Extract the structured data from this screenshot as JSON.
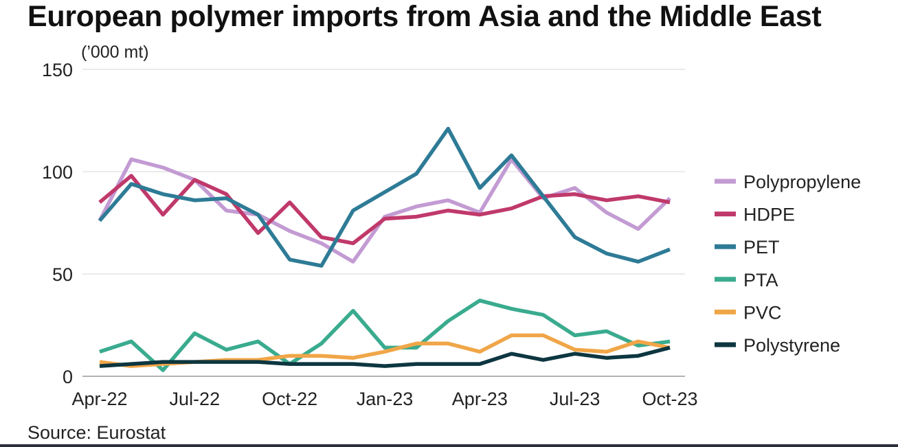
{
  "title": "European polymer imports from Asia and the Middle East",
  "source": "Source: Eurostat",
  "chart_data": {
    "type": "line",
    "title": "European polymer imports from Asia and the Middle East",
    "ylabel": "(’000 mt)",
    "xlabel": "",
    "ylim": [
      0,
      150
    ],
    "yticks": [
      "0",
      "50",
      "100",
      "150"
    ],
    "ytick_values": [
      0,
      50,
      100,
      150
    ],
    "grid": "horizontal",
    "legend_position": "right",
    "x": [
      "Apr-22",
      "May-22",
      "Jun-22",
      "Jul-22",
      "Aug-22",
      "Sep-22",
      "Oct-22",
      "Nov-22",
      "Dec-22",
      "Jan-23",
      "Feb-23",
      "Mar-23",
      "Apr-23",
      "May-23",
      "Jun-23",
      "Jul-23",
      "Aug-23",
      "Sep-23",
      "Oct-23"
    ],
    "xtick_labels": [
      "Apr-22",
      "Jul-22",
      "Oct-22",
      "Jan-23",
      "Apr-23",
      "Jul-23",
      "Oct-23"
    ],
    "xtick_indices": [
      0,
      3,
      6,
      9,
      12,
      15,
      18
    ],
    "series": [
      {
        "name": "Polypropylene",
        "color": "#c39bd3",
        "values": [
          76,
          106,
          102,
          96,
          81,
          79,
          71,
          65,
          56,
          78,
          83,
          86,
          80,
          106,
          87,
          92,
          80,
          72,
          87
        ]
      },
      {
        "name": "HDPE",
        "color": "#c0396b",
        "values": [
          85,
          98,
          79,
          96,
          89,
          70,
          85,
          68,
          65,
          77,
          78,
          81,
          79,
          82,
          88,
          89,
          86,
          88,
          85
        ]
      },
      {
        "name": "PET",
        "color": "#2e7b96",
        "values": [
          76,
          94,
          89,
          86,
          87,
          79,
          57,
          54,
          81,
          90,
          99,
          121,
          92,
          108,
          88,
          68,
          60,
          56,
          62
        ]
      },
      {
        "name": "PTA",
        "color": "#3aab8e",
        "values": [
          12,
          17,
          3,
          21,
          13,
          17,
          6,
          16,
          32,
          14,
          14,
          27,
          37,
          33,
          30,
          20,
          22,
          15,
          17
        ]
      },
      {
        "name": "PVC",
        "color": "#f0a648",
        "values": [
          7,
          5,
          6,
          7,
          8,
          8,
          10,
          10,
          9,
          12,
          16,
          16,
          12,
          20,
          20,
          13,
          12,
          17,
          14
        ]
      },
      {
        "name": "Polystyrene",
        "color": "#0d3640",
        "values": [
          5,
          6,
          7,
          7,
          7,
          7,
          6,
          6,
          6,
          5,
          6,
          6,
          6,
          11,
          8,
          11,
          9,
          10,
          14
        ]
      }
    ]
  }
}
